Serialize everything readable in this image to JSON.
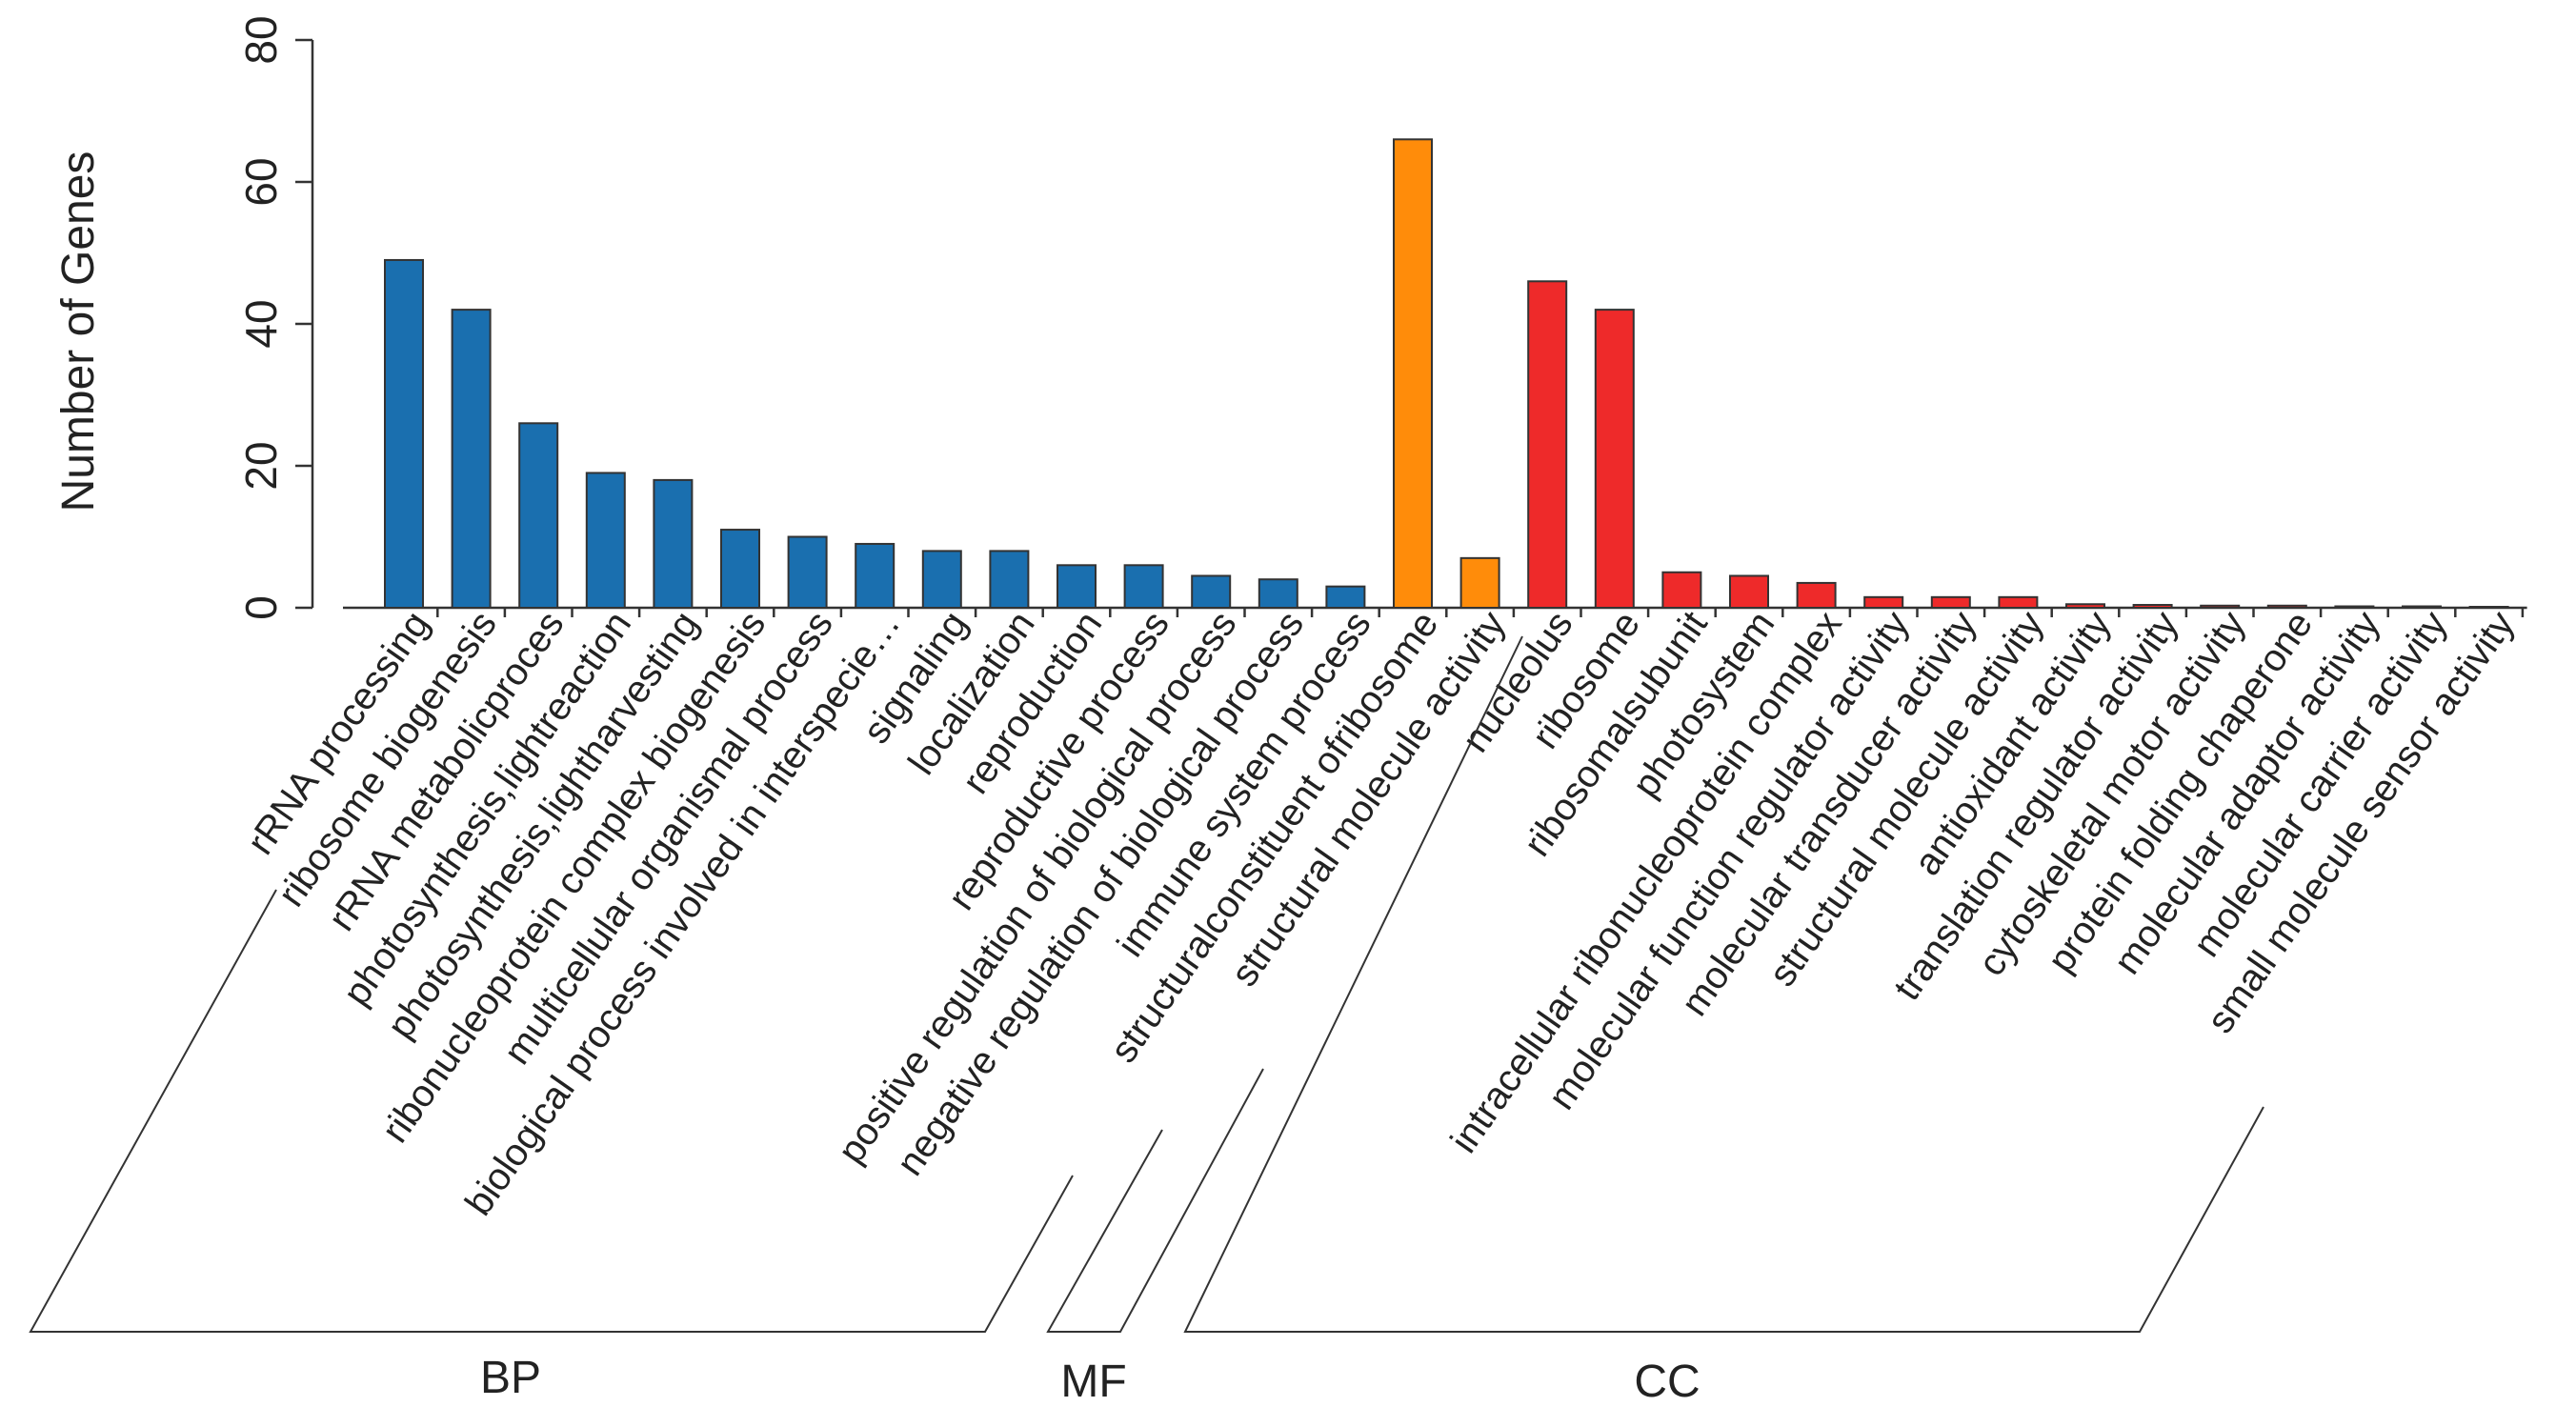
{
  "chart_data": {
    "type": "bar",
    "title": "",
    "xlabel": "",
    "ylabel": "Number of Genes",
    "ylim": [
      0,
      80
    ],
    "yticks": [
      0,
      20,
      40,
      60,
      80
    ],
    "categories": [
      "rRNA processing",
      "ribosome biogenesis",
      "rRNA metabolicproces",
      "photosynthesis,lightreaction",
      "photosynthesis,lightharvesting",
      "ribonucleoprotein complex biogenesis",
      "multicellular organismal process",
      "biological process involved in interspecie…",
      "signaling",
      "localization",
      "reproduction",
      "reproductive process",
      "positive regulation of biological process",
      "negative regulation of biological process",
      "immune system process",
      "structuralconstituent ofribosome",
      "structural molecule activity",
      "nucleolus",
      "ribosome",
      "ribosomalsubunit",
      "photosystem",
      "intracellular ribonucleoprotein complex",
      "molecular function regulator activity",
      "molecular transducer activity",
      "structural molecule activity",
      "antioxidant activity",
      "translation regulator activity",
      "cytoskeletal motor activity",
      "protein folding chaperone",
      "molecular adaptor activity",
      "molecular carrier activity",
      "small molecule sensor activity"
    ],
    "values": [
      49,
      42,
      26,
      19,
      18,
      11,
      10,
      9,
      8,
      8,
      6,
      6,
      4.5,
      4,
      3,
      66,
      7,
      46,
      42,
      5,
      4.5,
      3.5,
      1.5,
      1.5,
      1.5,
      0.5,
      0.4,
      0.3,
      0.3,
      0.2,
      0.2,
      0.1
    ],
    "groups": [
      "BP",
      "BP",
      "BP",
      "BP",
      "BP",
      "BP",
      "BP",
      "BP",
      "BP",
      "BP",
      "BP",
      "BP",
      "BP",
      "BP",
      "BP",
      "MF",
      "MF",
      "CC",
      "CC",
      "CC",
      "CC",
      "CC",
      "CC",
      "CC",
      "CC",
      "CC",
      "CC",
      "CC",
      "CC",
      "CC",
      "CC",
      "CC"
    ],
    "group_labels": [
      "BP",
      "MF",
      "CC"
    ],
    "colors": {
      "BP": "#1a6faf",
      "MF": "#ff8c0a",
      "CC": "#ee2a2a"
    }
  }
}
